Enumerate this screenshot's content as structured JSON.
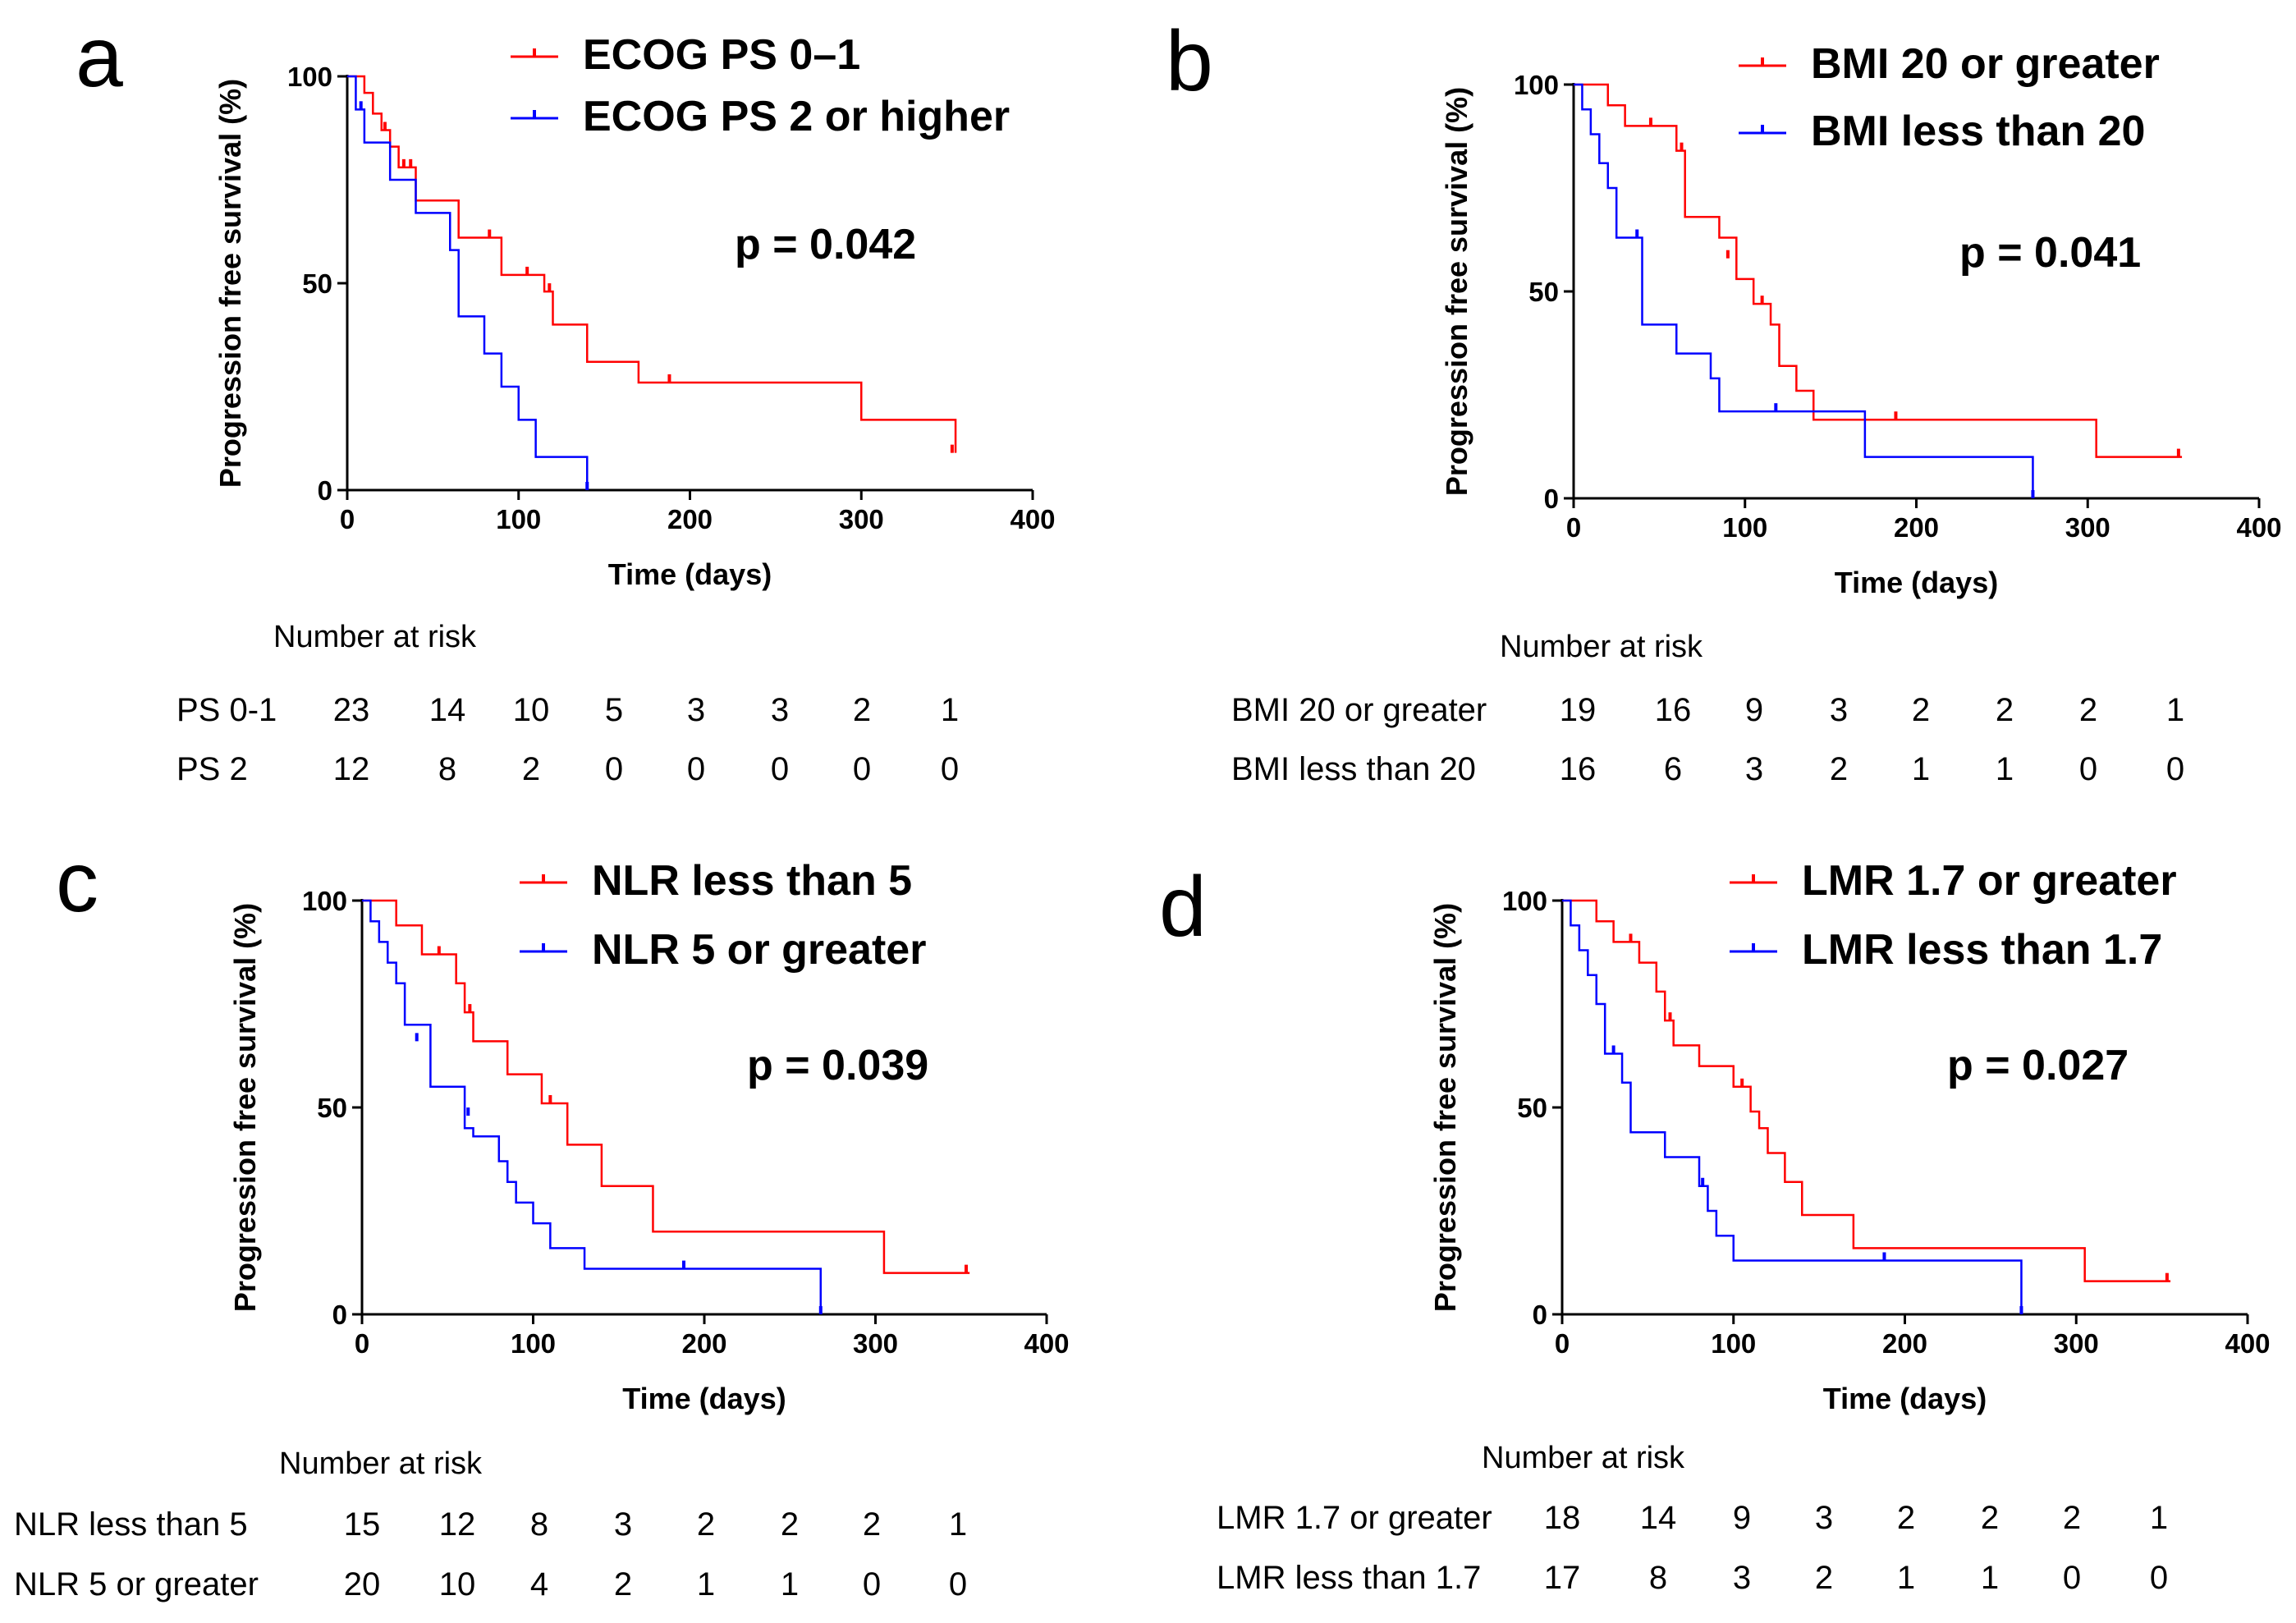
{
  "chart_data": [
    {
      "type": "line",
      "panel": "a",
      "xlabel": "Time (days)",
      "ylabel": "Progression free survival (%)",
      "xlim": [
        0,
        400
      ],
      "ylim": [
        0,
        100
      ],
      "xticks": [
        0,
        100,
        200,
        300,
        400
      ],
      "yticks": [
        0,
        50,
        100
      ],
      "p_value": "p = 0.042",
      "series": [
        {
          "name": "ECOG PS 0–1",
          "color": "#ff0000",
          "x": [
            0,
            10,
            15,
            20,
            25,
            30,
            40,
            60,
            65,
            85,
            90,
            105,
            115,
            120,
            140,
            170,
            268,
            300,
            355
          ],
          "y": [
            100,
            96,
            91,
            87,
            83,
            78,
            70,
            70,
            61,
            61,
            52,
            52,
            48,
            40,
            31,
            26,
            26,
            17,
            9
          ],
          "censor_x": [
            22,
            33,
            37,
            83,
            105,
            118,
            188,
            353
          ],
          "censor_y": [
            87,
            78,
            78,
            61,
            52,
            48,
            26,
            9
          ]
        },
        {
          "name": "ECOG PS 2 or higher",
          "color": "#0000ff",
          "x": [
            0,
            5,
            10,
            25,
            40,
            60,
            65,
            80,
            90,
            100,
            110,
            140
          ],
          "y": [
            100,
            92,
            84,
            75,
            67,
            58,
            42,
            33,
            25,
            17,
            8,
            0
          ],
          "censor_x": [
            8,
            140
          ],
          "censor_y": [
            92,
            0
          ]
        }
      ],
      "risk_table": {
        "title": "Number at risk",
        "rows": [
          {
            "label": "PS 0-1",
            "values": [
              "23",
              "14",
              "10",
              "5",
              "3",
              "3",
              "2",
              "1"
            ]
          },
          {
            "label": "PS 2",
            "values": [
              "12",
              "8",
              "2",
              "0",
              "0",
              "0",
              "0",
              "0"
            ]
          }
        ]
      }
    },
    {
      "type": "line",
      "panel": "b",
      "xlabel": "Time (days)",
      "ylabel": "Progression free survival (%)",
      "xlim": [
        0,
        400
      ],
      "ylim": [
        0,
        100
      ],
      "xticks": [
        0,
        100,
        200,
        300,
        400
      ],
      "yticks": [
        0,
        50,
        100
      ],
      "p_value": "p = 0.041",
      "series": [
        {
          "name": "BMI 20 or greater",
          "color": "#ff0000",
          "x": [
            0,
            20,
            30,
            60,
            65,
            85,
            95,
            105,
            115,
            120,
            130,
            140,
            305,
            355
          ],
          "y": [
            100,
            95,
            90,
            84,
            68,
            63,
            53,
            47,
            42,
            32,
            26,
            19,
            10,
            10
          ],
          "censor_x": [
            45,
            63,
            90,
            110,
            188,
            353
          ],
          "censor_y": [
            90,
            84,
            58,
            47,
            19,
            10
          ]
        },
        {
          "name": "BMI less than 20",
          "color": "#0000ff",
          "x": [
            0,
            5,
            10,
            15,
            20,
            25,
            40,
            60,
            80,
            85,
            170,
            268
          ],
          "y": [
            100,
            94,
            88,
            81,
            75,
            63,
            42,
            35,
            29,
            21,
            10,
            0
          ],
          "censor_x": [
            37,
            118,
            268
          ],
          "censor_y": [
            63,
            21,
            0
          ]
        }
      ],
      "risk_table": {
        "title": "Number at risk",
        "rows": [
          {
            "label": "BMI 20 or greater",
            "values": [
              "19",
              "16",
              "9",
              "3",
              "2",
              "2",
              "2",
              "1"
            ]
          },
          {
            "label": "BMI less than 20",
            "values": [
              "16",
              "6",
              "3",
              "2",
              "1",
              "1",
              "0",
              "0"
            ]
          }
        ]
      }
    },
    {
      "type": "line",
      "panel": "c",
      "xlabel": "Time (days)",
      "ylabel": "Progression free survival (%)",
      "xlim": [
        0,
        400
      ],
      "ylim": [
        0,
        100
      ],
      "xticks": [
        0,
        100,
        200,
        300,
        400
      ],
      "yticks": [
        0,
        50,
        100
      ],
      "p_value": "p = 0.039",
      "series": [
        {
          "name": "NLR less than 5",
          "color": "#ff0000",
          "x": [
            0,
            20,
            35,
            55,
            60,
            65,
            85,
            105,
            120,
            140,
            170,
            305,
            355
          ],
          "y": [
            100,
            94,
            87,
            80,
            73,
            66,
            58,
            51,
            41,
            31,
            20,
            10,
            10
          ],
          "censor_x": [
            45,
            63,
            110,
            353
          ],
          "censor_y": [
            87,
            73,
            51,
            10
          ]
        },
        {
          "name": "NLR 5 or greater",
          "color": "#0000ff",
          "x": [
            0,
            5,
            10,
            15,
            20,
            25,
            40,
            60,
            65,
            80,
            85,
            90,
            100,
            110,
            130,
            268
          ],
          "y": [
            100,
            95,
            90,
            85,
            80,
            70,
            55,
            45,
            43,
            37,
            32,
            27,
            22,
            16,
            11,
            0
          ],
          "censor_x": [
            32,
            62,
            188,
            268
          ],
          "censor_y": [
            66,
            48,
            11,
            0
          ]
        }
      ],
      "risk_table": {
        "title": "Number at risk",
        "rows": [
          {
            "label": "NLR less than 5",
            "values": [
              "15",
              "12",
              "8",
              "3",
              "2",
              "2",
              "2",
              "1"
            ]
          },
          {
            "label": "NLR 5 or greater",
            "values": [
              "20",
              "10",
              "4",
              "2",
              "1",
              "1",
              "0",
              "0"
            ]
          }
        ]
      }
    },
    {
      "type": "line",
      "panel": "d",
      "xlabel": "Time (days)",
      "ylabel": "Progression free survival (%)",
      "xlim": [
        0,
        400
      ],
      "ylim": [
        0,
        100
      ],
      "xticks": [
        0,
        100,
        200,
        300,
        400
      ],
      "yticks": [
        0,
        50,
        100
      ],
      "p_value": "p = 0.027",
      "series": [
        {
          "name": "LMR 1.7 or greater",
          "color": "#ff0000",
          "x": [
            0,
            20,
            30,
            45,
            55,
            60,
            65,
            80,
            100,
            110,
            115,
            120,
            130,
            140,
            170,
            305,
            355
          ],
          "y": [
            100,
            95,
            90,
            85,
            78,
            71,
            65,
            60,
            55,
            49,
            45,
            39,
            32,
            24,
            16,
            8,
            8
          ],
          "censor_x": [
            40,
            63,
            105,
            353
          ],
          "censor_y": [
            90,
            71,
            55,
            8
          ]
        },
        {
          "name": "LMR less than 1.7",
          "color": "#0000ff",
          "x": [
            0,
            5,
            10,
            15,
            20,
            25,
            35,
            40,
            60,
            80,
            85,
            90,
            100,
            268
          ],
          "y": [
            100,
            94,
            88,
            82,
            75,
            63,
            56,
            44,
            38,
            31,
            25,
            19,
            13,
            0
          ],
          "censor_x": [
            30,
            82,
            188,
            268
          ],
          "censor_y": [
            63,
            31,
            13,
            0
          ]
        }
      ],
      "risk_table": {
        "title": "Number at risk",
        "rows": [
          {
            "label": "LMR 1.7 or greater",
            "values": [
              "18",
              "14",
              "9",
              "3",
              "2",
              "2",
              "2",
              "1"
            ]
          },
          {
            "label": "LMR less than 1.7",
            "values": [
              "17",
              "8",
              "3",
              "2",
              "1",
              "1",
              "0",
              "0"
            ]
          }
        ]
      }
    }
  ]
}
